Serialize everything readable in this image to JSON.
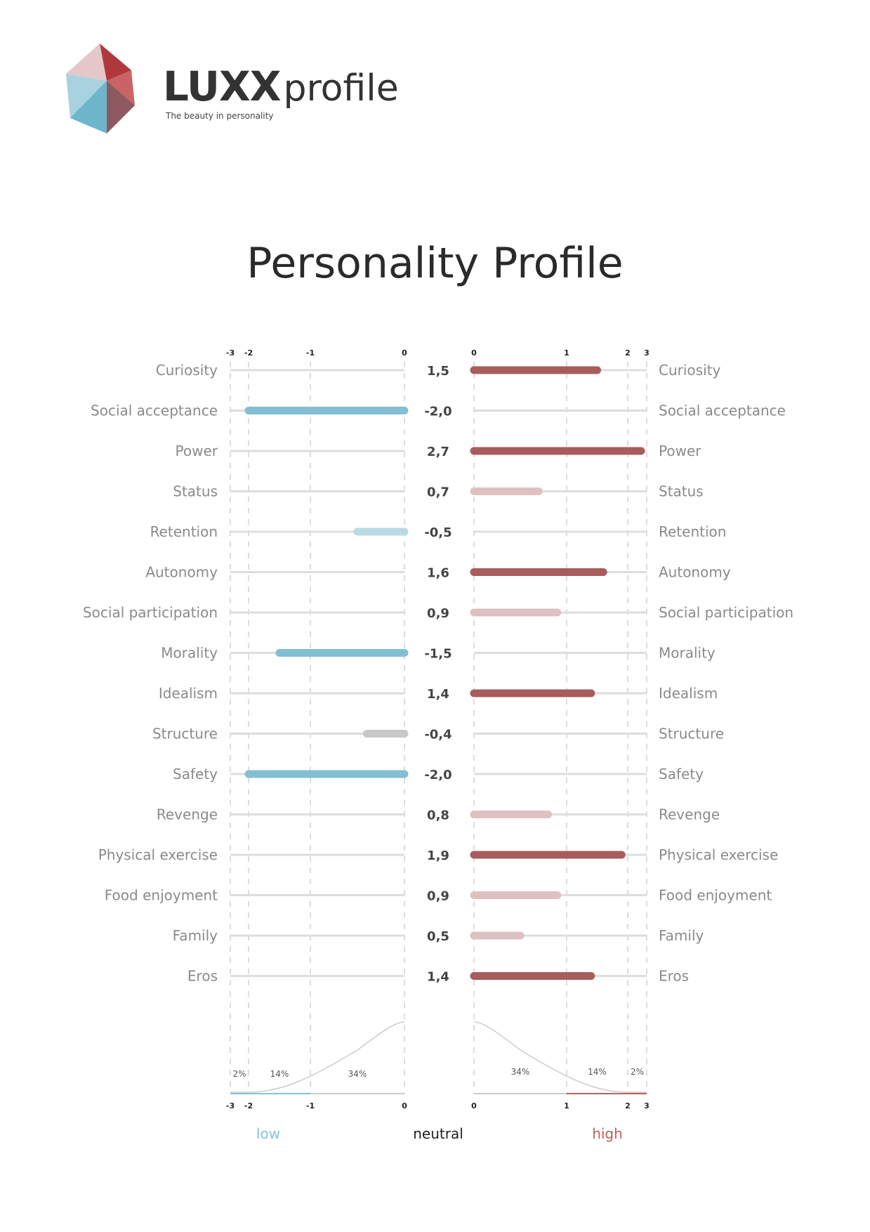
{
  "header": {
    "brand_bold": "LUXX",
    "brand_light": "profile",
    "tagline": "The beauty in personality"
  },
  "chart_data": {
    "type": "bar",
    "title": "Personality Profile",
    "left_ticks": [
      "-3",
      "-2",
      "-1",
      "0"
    ],
    "right_ticks": [
      "0",
      "1",
      "2",
      "3"
    ],
    "xlim": [
      -3,
      3
    ],
    "categories": [
      "Curiosity",
      "Social acceptance",
      "Power",
      "Status",
      "Retention",
      "Autonomy",
      "Social participation",
      "Morality",
      "Idealism",
      "Structure",
      "Safety",
      "Revenge",
      "Physical exercise",
      "Food enjoyment",
      "Family",
      "Eros"
    ],
    "values": [
      1.5,
      -2.0,
      2.7,
      0.7,
      -0.5,
      1.6,
      0.9,
      -1.5,
      1.4,
      -0.4,
      -2.0,
      0.8,
      1.9,
      0.9,
      0.5,
      1.4
    ],
    "value_labels": [
      "1,5",
      "-2,0",
      "2,7",
      "0,7",
      "-0,5",
      "1,6",
      "0,9",
      "-1,5",
      "1,4",
      "-0,4",
      "-2,0",
      "0,8",
      "1,9",
      "0,9",
      "0,5",
      "1,4"
    ],
    "bar_colors": [
      "#a85c5c",
      "#82bfd3",
      "#a85c5c",
      "#dfc0c0",
      "#b8dbe4",
      "#a85c5c",
      "#dfc0c0",
      "#82bfd3",
      "#a85c5c",
      "#c8c8c8",
      "#82bfd3",
      "#dfc0c0",
      "#a85c5c",
      "#dfc0c0",
      "#dfc0c0",
      "#a85c5c"
    ],
    "distribution": {
      "left_percents": [
        "2%",
        "14%",
        "34%"
      ],
      "right_percents": [
        "34%",
        "14%",
        "2%"
      ]
    },
    "legend": {
      "low": "low",
      "neutral": "neutral",
      "high": "high"
    },
    "colors": {
      "low": "#86c3d6",
      "high": "#c0605a",
      "neutral": "#222222"
    }
  }
}
